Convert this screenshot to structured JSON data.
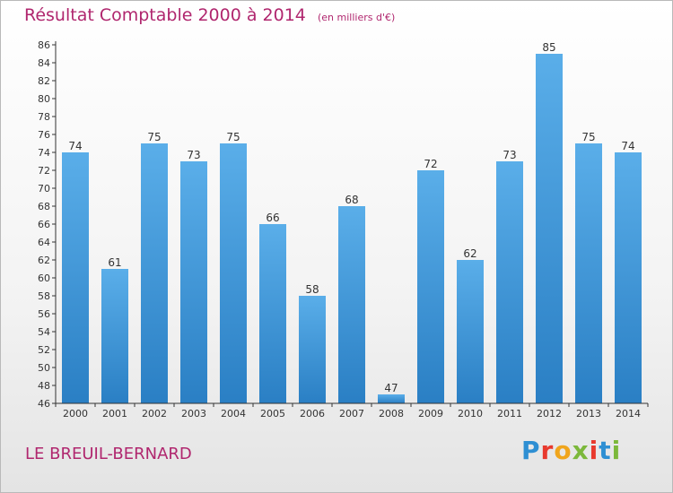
{
  "header": {
    "title": "Résultat Comptable 2000 à 2014",
    "subtitle": "(en milliers d'€)"
  },
  "footer": {
    "location": "LE BREUIL-BERNARD",
    "logo_text": "Proxiti"
  },
  "colors": {
    "accent_text": "#b0266e",
    "bar_top": "#5aaee9",
    "bar_bottom": "#2a7fc4",
    "axis": "#333333"
  },
  "chart_data": {
    "type": "bar",
    "title": "Résultat Comptable 2000 à 2014",
    "subtitle": "(en milliers d'€)",
    "xlabel": "",
    "ylabel": "",
    "categories": [
      "2000",
      "2001",
      "2002",
      "2003",
      "2004",
      "2005",
      "2006",
      "2007",
      "2008",
      "2009",
      "2010",
      "2011",
      "2012",
      "2013",
      "2014"
    ],
    "values": [
      74,
      61,
      75,
      73,
      75,
      66,
      58,
      68,
      47,
      72,
      62,
      73,
      85,
      75,
      74
    ],
    "ylim": [
      46,
      86
    ],
    "ytick_step": 2,
    "grid": false,
    "legend": "none",
    "data_labels": true
  }
}
